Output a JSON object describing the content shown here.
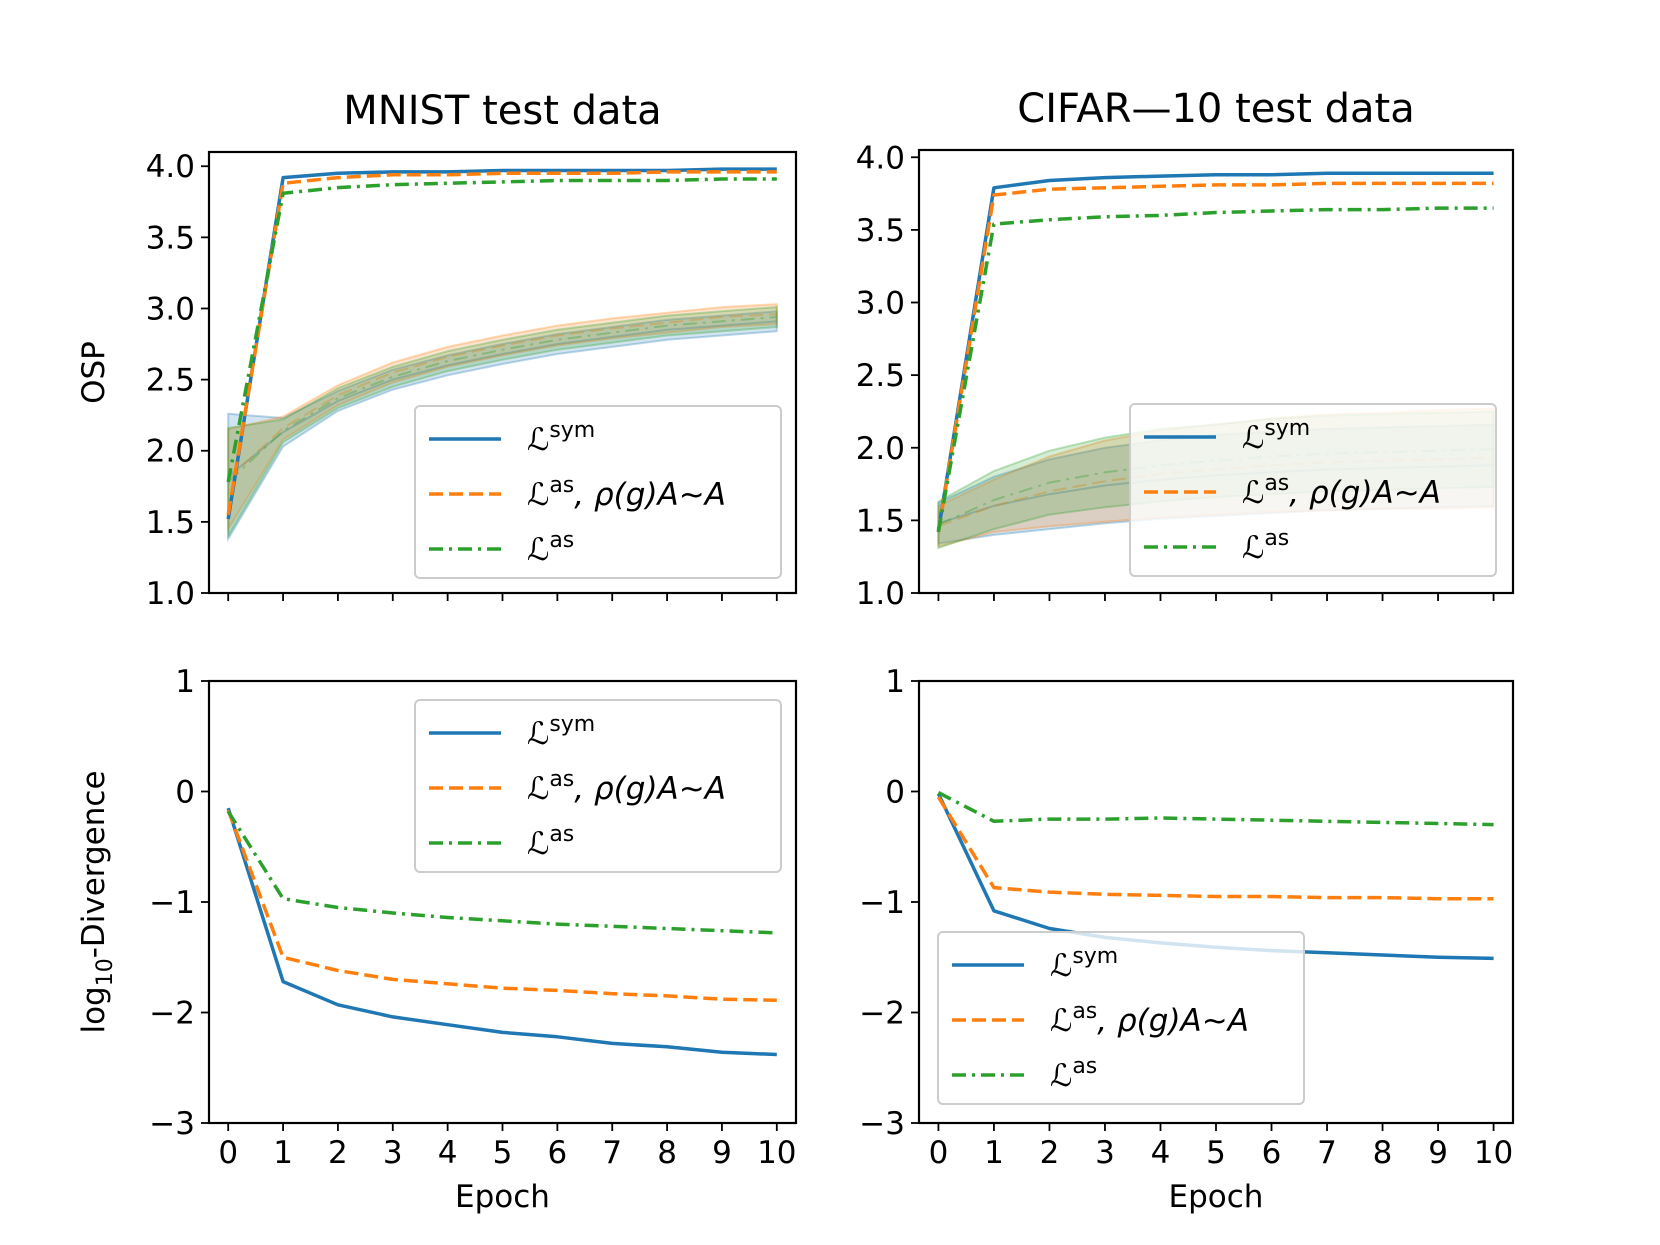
{
  "chart_data": [
    {
      "type": "line",
      "panel": "top-left",
      "title": "MNIST test data",
      "xlabel": "",
      "ylabel": "OSP",
      "xlim": [
        -0.35,
        10.35
      ],
      "ylim": [
        1.0,
        4.1
      ],
      "xticks": [
        0,
        1,
        2,
        3,
        4,
        5,
        6,
        7,
        8,
        9,
        10
      ],
      "xtick_labels": [],
      "yticks": [
        1.0,
        1.5,
        2.0,
        2.5,
        3.0,
        3.5,
        4.0
      ],
      "ytick_labels": [
        "1.0",
        "1.5",
        "2.0",
        "2.5",
        "3.0",
        "3.5",
        "4.0"
      ],
      "legend_location": "lower-right",
      "x": [
        0,
        1,
        2,
        3,
        4,
        5,
        6,
        7,
        8,
        9,
        10
      ],
      "series": [
        {
          "name": "L^sym",
          "legend_main": "ℒ",
          "legend_sup": "sym",
          "legend_suffix": "",
          "color": "#1f77b4",
          "style": "solid",
          "values": [
            1.52,
            3.92,
            3.95,
            3.96,
            3.96,
            3.97,
            3.97,
            3.97,
            3.97,
            3.98,
            3.98
          ],
          "band_mean": [
            1.82,
            2.13,
            2.35,
            2.5,
            2.6,
            2.68,
            2.75,
            2.8,
            2.85,
            2.88,
            2.91
          ],
          "band_half": [
            0.44,
            0.1,
            0.07,
            0.07,
            0.07,
            0.07,
            0.07,
            0.07,
            0.07,
            0.07,
            0.07
          ]
        },
        {
          "name": "L^as, rho(g)A~A",
          "legend_main": "ℒ",
          "legend_sup": "as",
          "legend_suffix": ", ρ(g)A∼A",
          "color": "#ff7f0e",
          "style": "dashed",
          "values": [
            1.55,
            3.88,
            3.92,
            3.94,
            3.94,
            3.95,
            3.95,
            3.95,
            3.96,
            3.96,
            3.96
          ],
          "band_mean": [
            1.8,
            2.16,
            2.39,
            2.55,
            2.66,
            2.74,
            2.81,
            2.86,
            2.9,
            2.94,
            2.96
          ],
          "band_half": [
            0.35,
            0.08,
            0.07,
            0.07,
            0.07,
            0.07,
            0.07,
            0.07,
            0.07,
            0.07,
            0.07
          ]
        },
        {
          "name": "L^as",
          "legend_main": "ℒ",
          "legend_sup": "as",
          "legend_suffix": "",
          "color": "#2ca02c",
          "style": "dashdot",
          "values": [
            1.78,
            3.81,
            3.85,
            3.87,
            3.88,
            3.89,
            3.9,
            3.9,
            3.9,
            3.91,
            3.91
          ],
          "band_mean": [
            1.78,
            2.14,
            2.37,
            2.52,
            2.63,
            2.71,
            2.78,
            2.83,
            2.88,
            2.91,
            2.94
          ],
          "band_half": [
            0.38,
            0.08,
            0.07,
            0.07,
            0.07,
            0.07,
            0.07,
            0.07,
            0.07,
            0.07,
            0.07
          ]
        }
      ]
    },
    {
      "type": "line",
      "panel": "top-right",
      "title": "CIFAR—10 test data",
      "xlabel": "",
      "ylabel": "",
      "xlim": [
        -0.35,
        10.35
      ],
      "ylim": [
        1.0,
        4.05
      ],
      "xticks": [
        0,
        1,
        2,
        3,
        4,
        5,
        6,
        7,
        8,
        9,
        10
      ],
      "xtick_labels": [],
      "yticks": [
        1.0,
        1.5,
        2.0,
        2.5,
        3.0,
        3.5,
        4.0
      ],
      "ytick_labels": [
        "1.0",
        "1.5",
        "2.0",
        "2.5",
        "3.0",
        "3.5",
        "4.0"
      ],
      "legend_location": "lower-right",
      "x": [
        0,
        1,
        2,
        3,
        4,
        5,
        6,
        7,
        8,
        9,
        10
      ],
      "series": [
        {
          "name": "L^sym",
          "legend_main": "ℒ",
          "legend_sup": "sym",
          "legend_suffix": "",
          "color": "#1f77b4",
          "style": "solid",
          "values": [
            1.43,
            3.79,
            3.84,
            3.86,
            3.87,
            3.88,
            3.88,
            3.89,
            3.89,
            3.89,
            3.89
          ],
          "band_mean": [
            1.48,
            1.6,
            1.68,
            1.74,
            1.78,
            1.81,
            1.83,
            1.85,
            1.86,
            1.87,
            1.88
          ],
          "band_half": [
            0.14,
            0.2,
            0.24,
            0.26,
            0.27,
            0.28,
            0.28,
            0.28,
            0.28,
            0.28,
            0.28
          ]
        },
        {
          "name": "L^as, rho(g)A~A",
          "legend_main": "ℒ",
          "legend_sup": "as",
          "legend_suffix": ", ρ(g)A∼A",
          "color": "#ff7f0e",
          "style": "dashed",
          "values": [
            1.42,
            3.74,
            3.78,
            3.79,
            3.8,
            3.81,
            3.81,
            3.82,
            3.82,
            3.82,
            3.82
          ],
          "band_mean": [
            1.46,
            1.6,
            1.7,
            1.77,
            1.82,
            1.85,
            1.88,
            1.9,
            1.91,
            1.92,
            1.93
          ],
          "band_half": [
            0.14,
            0.18,
            0.24,
            0.28,
            0.3,
            0.31,
            0.32,
            0.33,
            0.33,
            0.34,
            0.34
          ]
        },
        {
          "name": "L^as",
          "legend_main": "ℒ",
          "legend_sup": "as",
          "legend_suffix": "",
          "color": "#2ca02c",
          "style": "dashdot",
          "values": [
            1.42,
            3.54,
            3.57,
            3.59,
            3.6,
            3.62,
            3.63,
            3.64,
            3.64,
            3.65,
            3.65
          ],
          "band_mean": [
            1.47,
            1.64,
            1.76,
            1.83,
            1.88,
            1.91,
            1.94,
            1.96,
            1.97,
            1.98,
            1.99
          ],
          "band_half": [
            0.16,
            0.2,
            0.22,
            0.24,
            0.25,
            0.25,
            0.26,
            0.26,
            0.26,
            0.26,
            0.26
          ]
        }
      ]
    },
    {
      "type": "line",
      "panel": "bottom-left",
      "title": "",
      "xlabel": "Epoch",
      "ylabel": "log10-Divergence",
      "ylabel_main": "log",
      "ylabel_sub": "10",
      "ylabel_rest": "-Divergence",
      "xlim": [
        -0.35,
        10.35
      ],
      "ylim": [
        -3.0,
        1.0
      ],
      "xticks": [
        0,
        1,
        2,
        3,
        4,
        5,
        6,
        7,
        8,
        9,
        10
      ],
      "xtick_labels": [
        "0",
        "1",
        "2",
        "3",
        "4",
        "5",
        "6",
        "7",
        "8",
        "9",
        "10"
      ],
      "yticks": [
        -3,
        -2,
        -1,
        0,
        1
      ],
      "ytick_labels": [
        "−3",
        "−2",
        "−1",
        "0",
        "1"
      ],
      "legend_location": "upper-right",
      "x": [
        0,
        1,
        2,
        3,
        4,
        5,
        6,
        7,
        8,
        9,
        10
      ],
      "series": [
        {
          "name": "L^sym",
          "legend_main": "ℒ",
          "legend_sup": "sym",
          "legend_suffix": "",
          "color": "#1f77b4",
          "style": "solid",
          "values": [
            -0.15,
            -1.72,
            -1.93,
            -2.04,
            -2.11,
            -2.18,
            -2.22,
            -2.28,
            -2.31,
            -2.36,
            -2.38
          ]
        },
        {
          "name": "L^as, rho(g)A~A",
          "legend_main": "ℒ",
          "legend_sup": "as",
          "legend_suffix": ", ρ(g)A∼A",
          "color": "#ff7f0e",
          "style": "dashed",
          "values": [
            -0.17,
            -1.5,
            -1.62,
            -1.7,
            -1.74,
            -1.78,
            -1.8,
            -1.83,
            -1.85,
            -1.88,
            -1.89
          ]
        },
        {
          "name": "L^as",
          "legend_main": "ℒ",
          "legend_sup": "as",
          "legend_suffix": "",
          "color": "#2ca02c",
          "style": "dashdot",
          "values": [
            -0.18,
            -0.97,
            -1.05,
            -1.1,
            -1.14,
            -1.17,
            -1.2,
            -1.22,
            -1.24,
            -1.26,
            -1.28
          ]
        }
      ]
    },
    {
      "type": "line",
      "panel": "bottom-right",
      "title": "",
      "xlabel": "Epoch",
      "ylabel": "",
      "xlim": [
        -0.35,
        10.35
      ],
      "ylim": [
        -3.0,
        1.0
      ],
      "xticks": [
        0,
        1,
        2,
        3,
        4,
        5,
        6,
        7,
        8,
        9,
        10
      ],
      "xtick_labels": [
        "0",
        "1",
        "2",
        "3",
        "4",
        "5",
        "6",
        "7",
        "8",
        "9",
        "10"
      ],
      "yticks": [
        -3,
        -2,
        -1,
        0,
        1
      ],
      "ytick_labels": [
        "−3",
        "−2",
        "−1",
        "0",
        "1"
      ],
      "legend_location": "lower-left",
      "x": [
        0,
        1,
        2,
        3,
        4,
        5,
        6,
        7,
        8,
        9,
        10
      ],
      "series": [
        {
          "name": "L^sym",
          "legend_main": "ℒ",
          "legend_sup": "sym",
          "legend_suffix": "",
          "color": "#1f77b4",
          "style": "solid",
          "values": [
            -0.02,
            -1.08,
            -1.24,
            -1.32,
            -1.37,
            -1.41,
            -1.44,
            -1.46,
            -1.48,
            -1.5,
            -1.51
          ]
        },
        {
          "name": "L^as, rho(g)A~A",
          "legend_main": "ℒ",
          "legend_sup": "as",
          "legend_suffix": ", ρ(g)A∼A",
          "color": "#ff7f0e",
          "style": "dashed",
          "values": [
            -0.05,
            -0.87,
            -0.91,
            -0.93,
            -0.94,
            -0.95,
            -0.95,
            -0.96,
            -0.96,
            -0.97,
            -0.97
          ]
        },
        {
          "name": "L^as",
          "legend_main": "ℒ",
          "legend_sup": "as",
          "legend_suffix": "",
          "color": "#2ca02c",
          "style": "dashdot",
          "values": [
            -0.01,
            -0.27,
            -0.25,
            -0.25,
            -0.24,
            -0.25,
            -0.26,
            -0.27,
            -0.28,
            -0.29,
            -0.3
          ]
        }
      ]
    }
  ]
}
